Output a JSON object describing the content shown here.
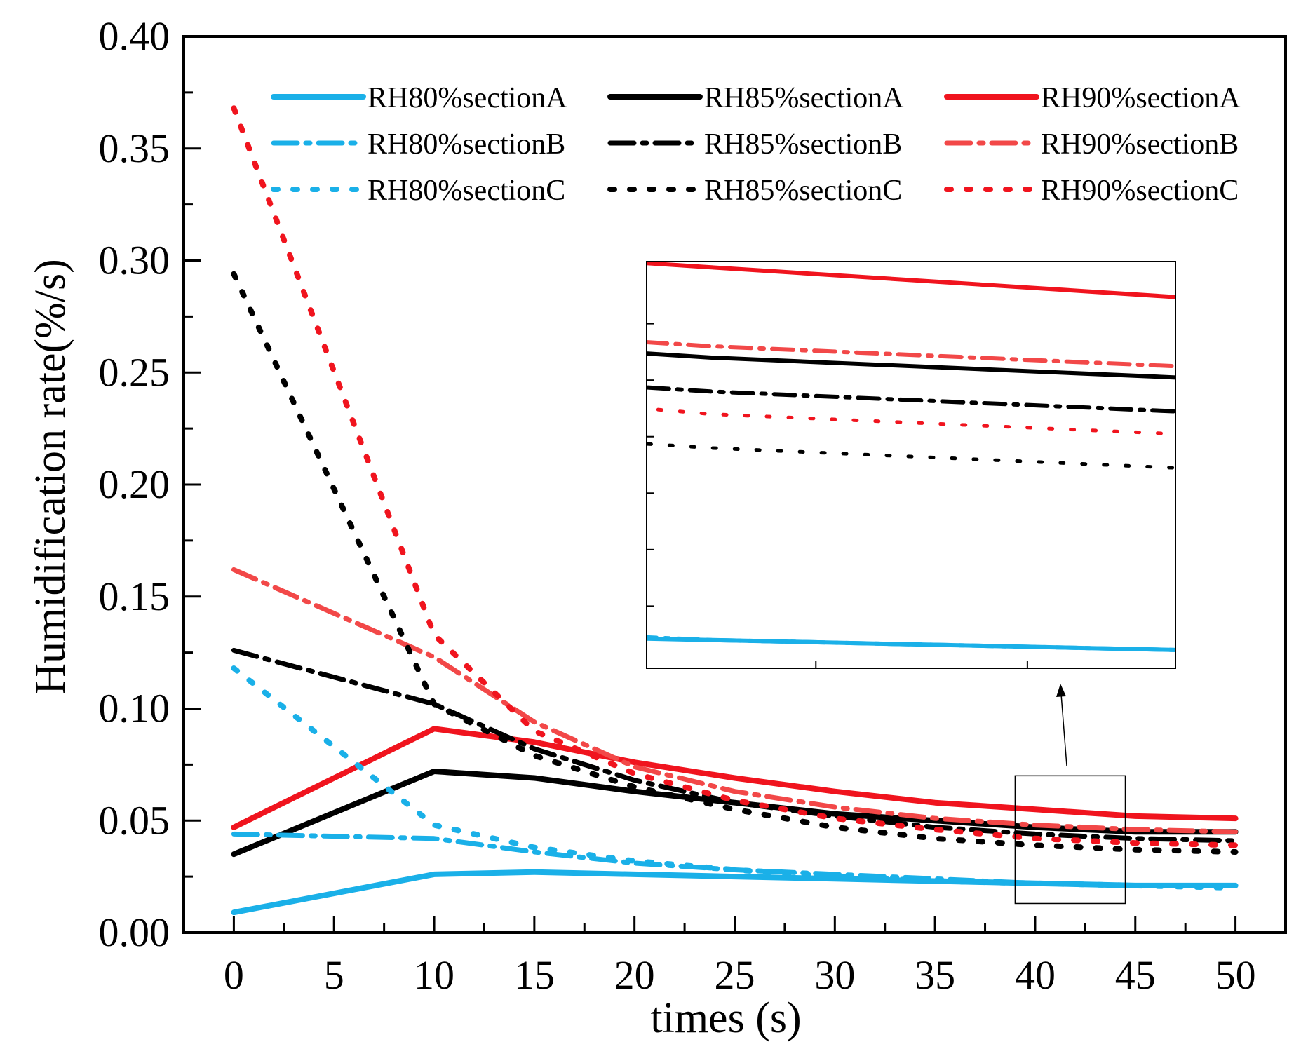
{
  "chart_data": {
    "type": "line",
    "title": "",
    "xlabel": "times (s)",
    "ylabel": "Humidification rate(%/s)",
    "xlim": [
      -2.5,
      52.5
    ],
    "ylim": [
      0,
      0.4
    ],
    "xticks": [
      0,
      5,
      10,
      15,
      20,
      25,
      30,
      35,
      40,
      45,
      50
    ],
    "yticks": [
      0,
      0.05,
      0.1,
      0.15,
      0.2,
      0.25,
      0.3,
      0.35,
      0.4
    ],
    "xtick_labels": [
      "0",
      "5",
      "10",
      "15",
      "20",
      "25",
      "30",
      "35",
      "40",
      "45",
      "50"
    ],
    "ytick_labels": [
      "0.00",
      "0.05",
      "0.10",
      "0.15",
      "0.20",
      "0.25",
      "0.30",
      "0.35",
      "0.40"
    ],
    "x": [
      0,
      10,
      15,
      20,
      25,
      30,
      35,
      40,
      45,
      50
    ],
    "legend_position": "top-right",
    "series": [
      {
        "name": "RH80%sectionA",
        "color": "#1ab0e8",
        "style": "solid",
        "values": [
          0.009,
          0.026,
          0.027,
          0.026,
          0.025,
          0.024,
          0.023,
          0.022,
          0.021,
          0.021
        ]
      },
      {
        "name": "RH85%sectionA",
        "color": "#000000",
        "style": "solid",
        "values": [
          0.035,
          0.072,
          0.069,
          0.063,
          0.058,
          0.053,
          0.05,
          0.047,
          0.045,
          0.045
        ]
      },
      {
        "name": "RH90%sectionA",
        "color": "#f0141e",
        "style": "solid",
        "values": [
          0.047,
          0.091,
          0.085,
          0.076,
          0.069,
          0.063,
          0.058,
          0.055,
          0.052,
          0.051
        ]
      },
      {
        "name": "RH80%sectionB",
        "color": "#1ab0e8",
        "style": "dashdot",
        "values": [
          0.044,
          0.042,
          0.036,
          0.031,
          0.028,
          0.026,
          0.024,
          0.022,
          0.021,
          0.021
        ]
      },
      {
        "name": "RH85%sectionB",
        "color": "#000000",
        "style": "dashdot",
        "values": [
          0.126,
          0.102,
          0.082,
          0.068,
          0.058,
          0.052,
          0.047,
          0.044,
          0.042,
          0.041
        ]
      },
      {
        "name": "RH90%sectionB",
        "color": "#f24848",
        "style": "dashdot",
        "values": [
          0.162,
          0.123,
          0.094,
          0.074,
          0.063,
          0.056,
          0.051,
          0.048,
          0.046,
          0.045
        ]
      },
      {
        "name": "RH80%sectionC",
        "color": "#1ab0e8",
        "style": "dotted",
        "values": [
          0.118,
          0.048,
          0.038,
          0.032,
          0.028,
          0.025,
          0.023,
          0.022,
          0.021,
          0.02
        ]
      },
      {
        "name": "RH85%sectionC",
        "color": "#000000",
        "style": "dotted",
        "values": [
          0.294,
          0.102,
          0.079,
          0.065,
          0.055,
          0.047,
          0.042,
          0.039,
          0.037,
          0.036
        ]
      },
      {
        "name": "RH90%sectionC",
        "color": "#f0141e",
        "style": "dotted",
        "values": [
          0.368,
          0.133,
          0.09,
          0.071,
          0.059,
          0.051,
          0.046,
          0.042,
          0.04,
          0.039
        ]
      }
    ],
    "zoom_region": {
      "x": [
        39,
        44.5
      ],
      "y": [
        0.013,
        0.07
      ]
    },
    "inset": {
      "xlim": [
        39.4,
        44.4
      ],
      "ylim": [
        0.0195,
        0.0555
      ],
      "xticks": [
        41,
        43
      ],
      "yticks": [
        0.025,
        0.03,
        0.035,
        0.04,
        0.045,
        0.05
      ]
    }
  }
}
